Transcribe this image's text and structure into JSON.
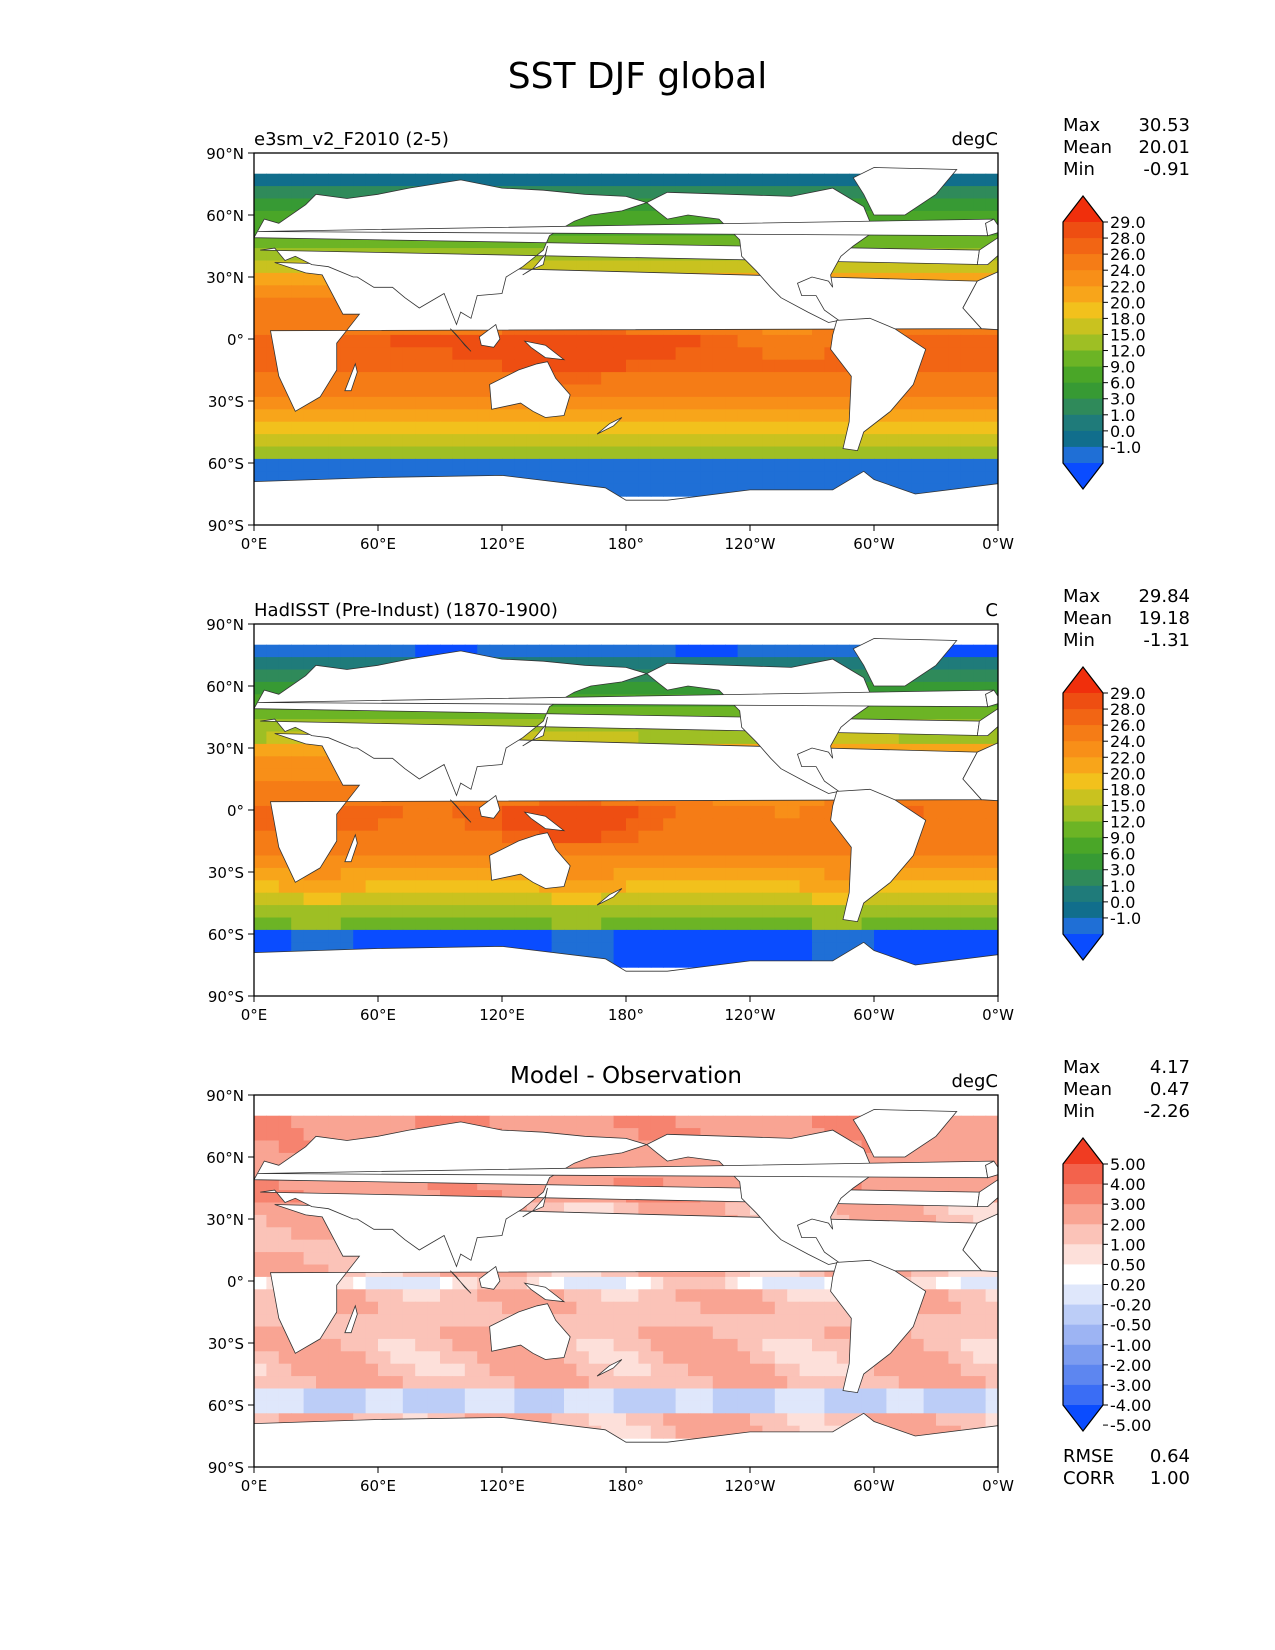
{
  "figure": {
    "title": "SST DJF global"
  },
  "colors": {
    "sst_levels": [
      "#0a4cff",
      "#1f6fd6",
      "#116e8c",
      "#1f7b7a",
      "#2f8a5a",
      "#379a34",
      "#4aa628",
      "#6cb425",
      "#9ebf24",
      "#c9c21f",
      "#f2c11c",
      "#f8a51a",
      "#f88f18",
      "#f57c16",
      "#f26514",
      "#ee4e12",
      "#f02f0c"
    ],
    "diff_levels": [
      "#0a4cff",
      "#3a6df5",
      "#5d86f0",
      "#7c9cf0",
      "#9db4f3",
      "#bccdf7",
      "#dfe7fb",
      "#ffffff",
      "#fde0da",
      "#fbc3b8",
      "#f9a493",
      "#f6836f",
      "#f3624c",
      "#f03c22"
    ]
  },
  "chart_data": [
    {
      "type": "heatmap",
      "title_left": "e3sm_v2_F2010 (2-5)",
      "title_right": "degC",
      "stats": [
        {
          "label": "Max",
          "value": "30.53"
        },
        {
          "label": "Mean",
          "value": "20.01"
        },
        {
          "label": "Min",
          "value": "-0.91"
        }
      ],
      "colorbar_ticks": [
        "29.0",
        "28.0",
        "26.0",
        "24.0",
        "22.0",
        "20.0",
        "18.0",
        "15.0",
        "12.0",
        "9.0",
        "6.0",
        "3.0",
        "1.0",
        "0.0",
        "-1.0"
      ],
      "xticks": [
        "0°E",
        "60°E",
        "120°E",
        "180°",
        "120°W",
        "60°W",
        "0°W"
      ],
      "yticks": [
        "90°N",
        "60°N",
        "30°N",
        "0°",
        "30°S",
        "60°S",
        "90°S"
      ],
      "xlim": [
        0,
        360
      ],
      "ylim": [
        -90,
        90
      ],
      "variant": "model"
    },
    {
      "type": "heatmap",
      "title_left": "HadISST (Pre-Indust) (1870-1900)",
      "title_right": "C",
      "stats": [
        {
          "label": "Max",
          "value": "29.84"
        },
        {
          "label": "Mean",
          "value": "19.18"
        },
        {
          "label": "Min",
          "value": "-1.31"
        }
      ],
      "colorbar_ticks": [
        "29.0",
        "28.0",
        "26.0",
        "24.0",
        "22.0",
        "20.0",
        "18.0",
        "15.0",
        "12.0",
        "9.0",
        "6.0",
        "3.0",
        "1.0",
        "0.0",
        "-1.0"
      ],
      "xticks": [
        "0°E",
        "60°E",
        "120°E",
        "180°",
        "120°W",
        "60°W",
        "0°W"
      ],
      "yticks": [
        "90°N",
        "60°N",
        "30°N",
        "0°",
        "30°S",
        "60°S",
        "90°S"
      ],
      "xlim": [
        0,
        360
      ],
      "ylim": [
        -90,
        90
      ],
      "variant": "obs"
    },
    {
      "type": "heatmap",
      "title_center": "Model - Observation",
      "title_right": "degC",
      "stats": [
        {
          "label": "Max",
          "value": "4.17"
        },
        {
          "label": "Mean",
          "value": "0.47"
        },
        {
          "label": "Min",
          "value": "-2.26"
        }
      ],
      "colorbar_ticks": [
        "5.00",
        "4.00",
        "3.00",
        "2.00",
        "1.00",
        "0.50",
        "0.20",
        "-0.20",
        "-0.50",
        "-1.00",
        "-2.00",
        "-3.00",
        "-4.00",
        "-5.00"
      ],
      "xticks": [
        "0°E",
        "60°E",
        "120°E",
        "180°",
        "120°W",
        "60°W",
        "0°W"
      ],
      "yticks": [
        "90°N",
        "60°N",
        "30°N",
        "0°",
        "30°S",
        "60°S",
        "90°S"
      ],
      "xlim": [
        0,
        360
      ],
      "ylim": [
        -90,
        90
      ],
      "extra_stats": [
        {
          "label": "RMSE",
          "value": "0.64"
        },
        {
          "label": "CORR",
          "value": "1.00"
        }
      ],
      "variant": "diff"
    }
  ]
}
